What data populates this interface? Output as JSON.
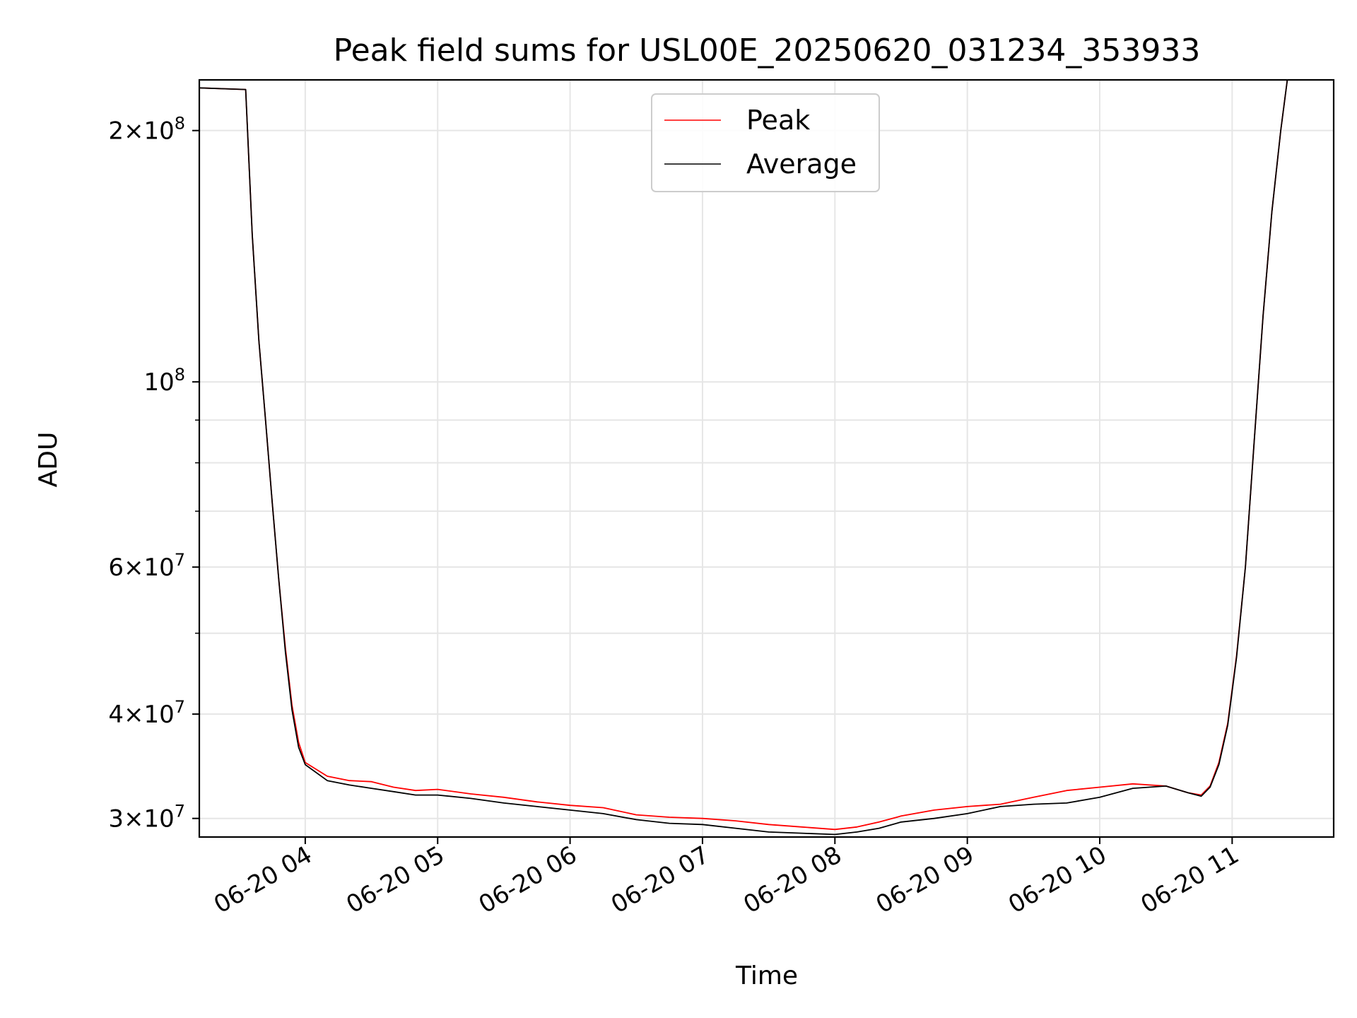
{
  "chart_data": {
    "type": "line",
    "title": "Peak field sums for USL00E_20250620_031234_353933",
    "xlabel": "Time",
    "ylabel": "ADU",
    "y_scale": "log",
    "ylim": [
      28500000,
      230000000
    ],
    "xlim": [
      "2025-06-20 03:12",
      "2025-06-20 11:46"
    ],
    "grid": true,
    "legend_position": "upper center",
    "x_ticks": [
      {
        "value": "2025-06-20 04:00",
        "label": "06-20 04"
      },
      {
        "value": "2025-06-20 05:00",
        "label": "06-20 05"
      },
      {
        "value": "2025-06-20 06:00",
        "label": "06-20 06"
      },
      {
        "value": "2025-06-20 07:00",
        "label": "06-20 07"
      },
      {
        "value": "2025-06-20 08:00",
        "label": "06-20 08"
      },
      {
        "value": "2025-06-20 09:00",
        "label": "06-20 09"
      },
      {
        "value": "2025-06-20 10:00",
        "label": "06-20 10"
      },
      {
        "value": "2025-06-20 11:00",
        "label": "06-20 11"
      }
    ],
    "y_ticks": [
      {
        "value": 30000000,
        "mantissa": "3",
        "exponent": "7"
      },
      {
        "value": 40000000,
        "mantissa": "4",
        "exponent": "7"
      },
      {
        "value": 60000000,
        "mantissa": "6",
        "exponent": "7"
      },
      {
        "value": 100000000,
        "mantissa": "",
        "exponent": "8"
      },
      {
        "value": 200000000,
        "mantissa": "2",
        "exponent": "8"
      }
    ],
    "series": [
      {
        "name": "Peak",
        "color": "#ff0000",
        "x": [
          "2025-06-20 03:12",
          "2025-06-20 03:33",
          "2025-06-20 03:36",
          "2025-06-20 03:39",
          "2025-06-20 03:42",
          "2025-06-20 03:45",
          "2025-06-20 03:48",
          "2025-06-20 03:51",
          "2025-06-20 03:54",
          "2025-06-20 03:57",
          "2025-06-20 04:00",
          "2025-06-20 04:10",
          "2025-06-20 04:20",
          "2025-06-20 04:30",
          "2025-06-20 04:40",
          "2025-06-20 04:50",
          "2025-06-20 05:00",
          "2025-06-20 05:15",
          "2025-06-20 05:30",
          "2025-06-20 05:45",
          "2025-06-20 06:00",
          "2025-06-20 06:15",
          "2025-06-20 06:30",
          "2025-06-20 06:45",
          "2025-06-20 07:00",
          "2025-06-20 07:15",
          "2025-06-20 07:30",
          "2025-06-20 07:45",
          "2025-06-20 08:00",
          "2025-06-20 08:10",
          "2025-06-20 08:20",
          "2025-06-20 08:30",
          "2025-06-20 08:45",
          "2025-06-20 09:00",
          "2025-06-20 09:15",
          "2025-06-20 09:30",
          "2025-06-20 09:45",
          "2025-06-20 10:00",
          "2025-06-20 10:15",
          "2025-06-20 10:30",
          "2025-06-20 10:40",
          "2025-06-20 10:46",
          "2025-06-20 10:50",
          "2025-06-20 10:54",
          "2025-06-20 10:58",
          "2025-06-20 11:02",
          "2025-06-20 11:06",
          "2025-06-20 11:10",
          "2025-06-20 11:14",
          "2025-06-20 11:18",
          "2025-06-20 11:22",
          "2025-06-20 11:25",
          "2025-06-20 11:46"
        ],
        "y": [
          225000000,
          224000000,
          150000000,
          112000000,
          90000000,
          72000000,
          58000000,
          48000000,
          41000000,
          37000000,
          35000000,
          33700000,
          33300000,
          33200000,
          32700000,
          32400000,
          32500000,
          32100000,
          31800000,
          31400000,
          31100000,
          30900000,
          30300000,
          30100000,
          30000000,
          29800000,
          29500000,
          29300000,
          29100000,
          29300000,
          29700000,
          30200000,
          30700000,
          31000000,
          31200000,
          31800000,
          32400000,
          32700000,
          33000000,
          32800000,
          32200000,
          32000000,
          32800000,
          35000000,
          39000000,
          47000000,
          60000000,
          85000000,
          120000000,
          160000000,
          200000000,
          230000000,
          230000000
        ]
      },
      {
        "name": "Average",
        "color": "#000000",
        "x": [
          "2025-06-20 03:12",
          "2025-06-20 03:33",
          "2025-06-20 03:36",
          "2025-06-20 03:39",
          "2025-06-20 03:42",
          "2025-06-20 03:45",
          "2025-06-20 03:48",
          "2025-06-20 03:51",
          "2025-06-20 03:54",
          "2025-06-20 03:57",
          "2025-06-20 04:00",
          "2025-06-20 04:10",
          "2025-06-20 04:20",
          "2025-06-20 04:30",
          "2025-06-20 04:40",
          "2025-06-20 04:50",
          "2025-06-20 05:00",
          "2025-06-20 05:15",
          "2025-06-20 05:30",
          "2025-06-20 05:45",
          "2025-06-20 06:00",
          "2025-06-20 06:15",
          "2025-06-20 06:30",
          "2025-06-20 06:45",
          "2025-06-20 07:00",
          "2025-06-20 07:15",
          "2025-06-20 07:30",
          "2025-06-20 07:45",
          "2025-06-20 08:00",
          "2025-06-20 08:10",
          "2025-06-20 08:20",
          "2025-06-20 08:30",
          "2025-06-20 08:45",
          "2025-06-20 09:00",
          "2025-06-20 09:15",
          "2025-06-20 09:30",
          "2025-06-20 09:45",
          "2025-06-20 10:00",
          "2025-06-20 10:15",
          "2025-06-20 10:30",
          "2025-06-20 10:40",
          "2025-06-20 10:46",
          "2025-06-20 10:50",
          "2025-06-20 10:54",
          "2025-06-20 10:58",
          "2025-06-20 11:02",
          "2025-06-20 11:06",
          "2025-06-20 11:10",
          "2025-06-20 11:14",
          "2025-06-20 11:18",
          "2025-06-20 11:22",
          "2025-06-20 11:25",
          "2025-06-20 11:46"
        ],
        "y": [
          225000000,
          224000000,
          150000000,
          112000000,
          90000000,
          72000000,
          58000000,
          47500000,
          40500000,
          36500000,
          34800000,
          33300000,
          32900000,
          32600000,
          32300000,
          32000000,
          32000000,
          31700000,
          31300000,
          31000000,
          30700000,
          30400000,
          29900000,
          29600000,
          29500000,
          29200000,
          28900000,
          28800000,
          28700000,
          28900000,
          29200000,
          29700000,
          30000000,
          30400000,
          31000000,
          31200000,
          31300000,
          31800000,
          32600000,
          32800000,
          32200000,
          31900000,
          32700000,
          34800000,
          38800000,
          46800000,
          60000000,
          85000000,
          120000000,
          160000000,
          200000000,
          230000000,
          230000000
        ]
      }
    ]
  }
}
